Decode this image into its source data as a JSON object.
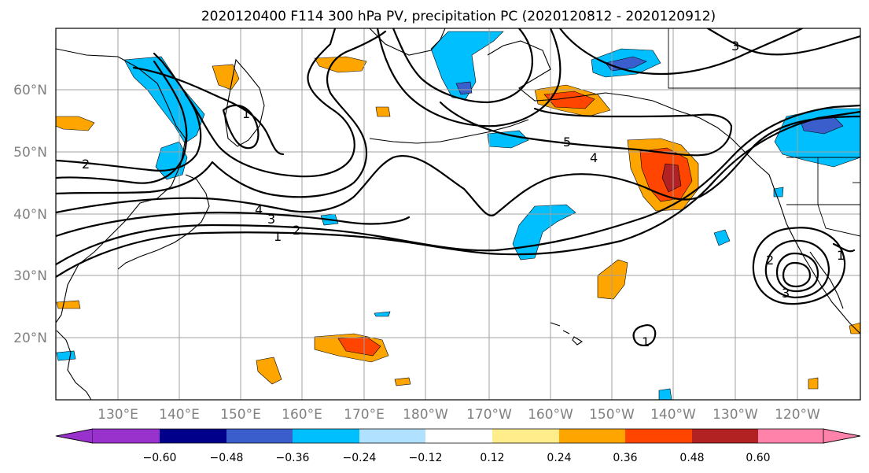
{
  "title": "2020120400 F114 300 hPa PV, precipitation PC (2020120812 - 2020120912)",
  "map": {
    "lat_labels": [
      "60°N",
      "50°N",
      "40°N",
      "30°N",
      "20°N"
    ],
    "lon_labels": [
      "130°E",
      "140°E",
      "150°E",
      "160°E",
      "170°E",
      "180°W",
      "170°W",
      "160°W",
      "150°W",
      "140°W",
      "130°W",
      "120°W"
    ],
    "contour_labels": [
      {
        "name": "contour-label-2-west",
        "text": "2"
      },
      {
        "name": "contour-label-4-central",
        "text": "4"
      },
      {
        "name": "contour-label-3-central",
        "text": "3"
      },
      {
        "name": "contour-label-2-central",
        "text": "2"
      },
      {
        "name": "contour-label-1-central",
        "text": "1"
      },
      {
        "name": "contour-label-5-east",
        "text": "5"
      },
      {
        "name": "contour-label-4-east",
        "text": "4"
      },
      {
        "name": "contour-label-3-northeast",
        "text": "3"
      },
      {
        "name": "contour-label-1-kamchatka",
        "text": "1"
      },
      {
        "name": "contour-label-2-cutoff-low",
        "text": "2"
      },
      {
        "name": "contour-label-3-cutoff-low",
        "text": "3"
      },
      {
        "name": "contour-label-1-baja",
        "text": "1"
      },
      {
        "name": "contour-label-1-hawaii",
        "text": "1"
      }
    ]
  },
  "colorbar": {
    "tick_labels": [
      "−0.60",
      "−0.48",
      "−0.36",
      "−0.24",
      "−0.12",
      "0.12",
      "0.24",
      "0.36",
      "0.48",
      "0.60"
    ],
    "colors": [
      "#9932CC",
      "#00008B",
      "#3A5FCD",
      "#00BFFF",
      "#B0E2FF",
      "#FFFFFF",
      "#FFEC8B",
      "#FFA500",
      "#FF4500",
      "#B22222",
      "#FF82AB"
    ]
  }
}
